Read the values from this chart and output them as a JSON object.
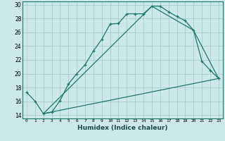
{
  "title": "",
  "xlabel": "Humidex (Indice chaleur)",
  "background_color": "#cce8e8",
  "grid_color": "#a0c8c8",
  "line_color": "#1a7a6a",
  "xlim": [
    -0.5,
    23.5
  ],
  "ylim": [
    13.5,
    30.5
  ],
  "xticks": [
    0,
    1,
    2,
    3,
    4,
    5,
    6,
    7,
    8,
    9,
    10,
    11,
    12,
    13,
    14,
    15,
    16,
    17,
    18,
    19,
    20,
    21,
    22,
    23
  ],
  "yticks": [
    14,
    16,
    18,
    20,
    22,
    24,
    26,
    28,
    30
  ],
  "curve1_x": [
    0,
    1,
    2,
    3,
    4,
    5,
    6,
    7,
    8,
    9,
    10,
    11,
    12,
    13,
    14,
    15,
    16,
    17,
    18,
    19,
    20,
    21,
    22,
    23
  ],
  "curve1_y": [
    17.3,
    16.0,
    14.2,
    14.4,
    16.1,
    18.5,
    20.0,
    21.3,
    23.3,
    25.0,
    27.2,
    27.3,
    28.7,
    28.7,
    28.7,
    29.8,
    29.8,
    29.0,
    28.3,
    27.7,
    26.3,
    21.8,
    20.5,
    19.3
  ],
  "curve2_x": [
    2,
    23
  ],
  "curve2_y": [
    14.2,
    19.3
  ],
  "curve3_x": [
    2,
    15,
    20,
    23
  ],
  "curve3_y": [
    14.2,
    29.8,
    26.3,
    19.3
  ]
}
